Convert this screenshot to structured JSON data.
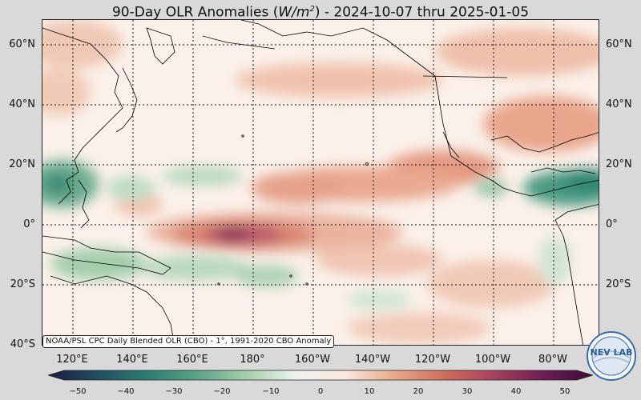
{
  "title": {
    "prefix": "90-Day OLR Anomalies (",
    "unit_base": "W/m",
    "unit_exp": "2",
    "suffix": ") - 2024-10-07 thru 2025-01-05"
  },
  "map": {
    "lat_labels": [
      "60°N",
      "40°N",
      "20°N",
      "0°",
      "20°S",
      "40°S"
    ],
    "lon_labels": [
      "120°E",
      "140°E",
      "160°E",
      "180°",
      "160°W",
      "140°W",
      "120°W",
      "100°W",
      "80°W"
    ],
    "source_note": "NOAA/PSL CPC Daily Blended OLR (CBO) - 1°, 1991-2020 CBO Anomaly"
  },
  "colorbar": {
    "ticks": [
      "−50",
      "−40",
      "−30",
      "−20",
      "−10",
      "0",
      "10",
      "20",
      "30",
      "40",
      "50"
    ],
    "range": [
      -50,
      50
    ],
    "colors": [
      "#1b1d3c",
      "#234d62",
      "#2a7d72",
      "#5aa388",
      "#a5ceaa",
      "#edf3ee",
      "#fbe7dd",
      "#e8a888",
      "#cf6e5d",
      "#a8405e",
      "#6e1d55",
      "#3b0a3b"
    ]
  },
  "logo": {
    "text": "NEV LAB",
    "icon": "nevlab-globe-logo"
  }
}
